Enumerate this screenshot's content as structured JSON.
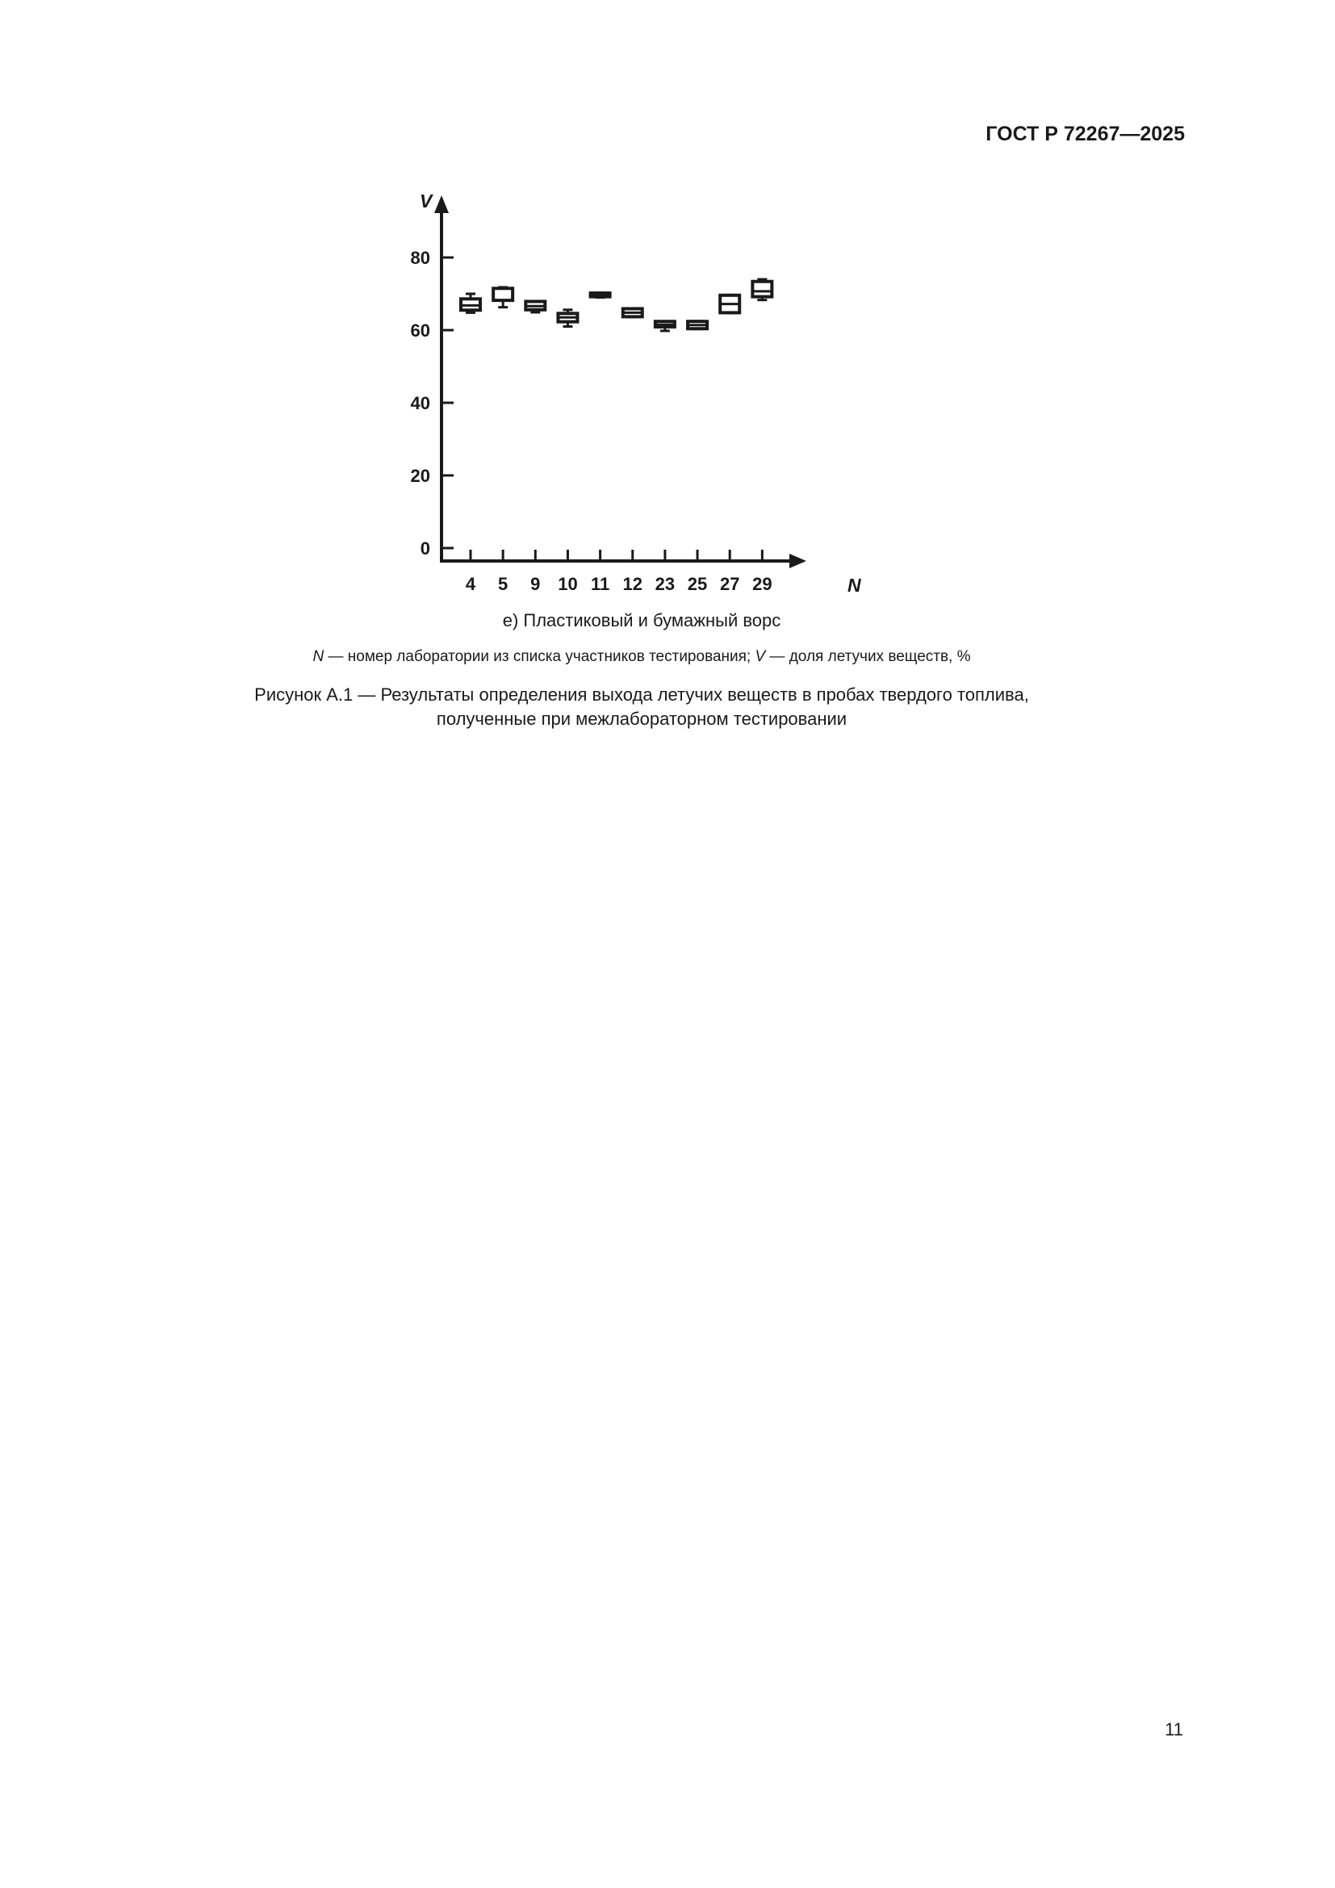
{
  "header": {
    "doc_code": "ГОСТ Р 72267—2025"
  },
  "chart_data": {
    "type": "boxplot",
    "title": "",
    "xlabel": "N",
    "ylabel": "V",
    "ylim": [
      0,
      80
    ],
    "yticks": [
      0,
      20,
      40,
      60,
      80
    ],
    "grid": false,
    "categories": [
      "4",
      "5",
      "9",
      "10",
      "11",
      "12",
      "23",
      "25",
      "27",
      "29"
    ],
    "boxes": [
      {
        "min": 64.8,
        "q1": 65.5,
        "median": 66.8,
        "q3": 68.6,
        "max": 70.0
      },
      {
        "min": 66.3,
        "q1": 68.2,
        "median": 68.2,
        "q3": 71.5,
        "max": 71.8
      },
      {
        "min": 64.9,
        "q1": 65.6,
        "median": 66.6,
        "q3": 67.9,
        "max": 67.9
      },
      {
        "min": 61.0,
        "q1": 62.3,
        "median": 63.5,
        "q3": 64.6,
        "max": 65.6
      },
      {
        "min": 69.0,
        "q1": 69.2,
        "median": 69.7,
        "q3": 70.2,
        "max": 70.3
      },
      {
        "min": 63.6,
        "q1": 63.7,
        "median": 64.8,
        "q3": 65.9,
        "max": 66.0
      },
      {
        "min": 59.8,
        "q1": 60.9,
        "median": 61.5,
        "q3": 62.4,
        "max": 62.4
      },
      {
        "min": 60.3,
        "q1": 60.4,
        "median": 61.4,
        "q3": 62.4,
        "max": 62.5
      },
      {
        "min": 64.7,
        "q1": 64.8,
        "median": 67.2,
        "q3": 69.6,
        "max": 69.7
      },
      {
        "min": 68.3,
        "q1": 69.2,
        "median": 70.7,
        "q3": 73.4,
        "max": 74.0
      }
    ]
  },
  "caption": "е)  Пластиковый и бумажный ворс",
  "note": {
    "n_symbol": "N",
    "n_text": " — номер лаборатории из списка участников тестирования; ",
    "v_symbol": "V",
    "v_text": " — доля летучих веществ, %"
  },
  "figure_title": {
    "line1": "Рисунок А.1 — Результаты определения выхода летучих веществ в пробах твердого топлива,",
    "line2": "полученные при межлабораторном тестировании"
  },
  "page_number": "11"
}
